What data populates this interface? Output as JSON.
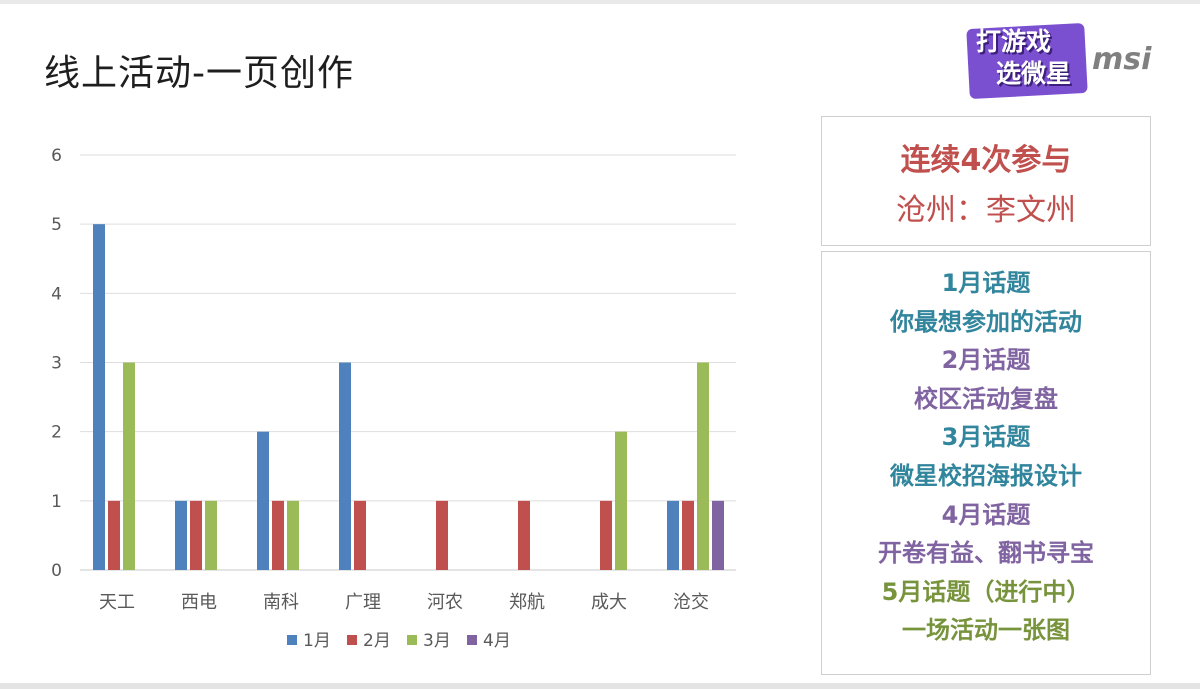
{
  "slide": {
    "title": "线上活动-一页创作"
  },
  "logo": {
    "line1": "打游戏",
    "line2": "选微星",
    "brand": "msi"
  },
  "chart_data": {
    "type": "bar",
    "categories": [
      "天工",
      "西电",
      "南科",
      "广理",
      "河农",
      "郑航",
      "成大",
      "沧交"
    ],
    "series": [
      {
        "name": "1月",
        "color": "#4f81bd",
        "values": [
          5,
          1,
          2,
          3,
          0,
          0,
          0,
          1
        ]
      },
      {
        "name": "2月",
        "color": "#c0504d",
        "values": [
          1,
          1,
          1,
          1,
          1,
          1,
          1,
          1
        ]
      },
      {
        "name": "3月",
        "color": "#9bbb59",
        "values": [
          3,
          1,
          1,
          0,
          0,
          0,
          2,
          3
        ]
      },
      {
        "name": "4月",
        "color": "#8064a2",
        "values": [
          0,
          0,
          0,
          0,
          0,
          0,
          0,
          1
        ]
      }
    ],
    "ylim": [
      0,
      6
    ],
    "yticks": [
      0,
      1,
      2,
      3,
      4,
      5,
      6
    ],
    "grid": true,
    "legend": "bottom"
  },
  "highlight": {
    "title": "连续4次参与",
    "name": "沧州：李文州"
  },
  "topics": [
    {
      "text": "1月话题",
      "color": "#31859c"
    },
    {
      "text": "你最想参加的活动",
      "color": "#31859c"
    },
    {
      "text": "2月话题",
      "color": "#8064a2"
    },
    {
      "text": "校区活动复盘",
      "color": "#8064a2"
    },
    {
      "text": "3月话题",
      "color": "#31859c"
    },
    {
      "text": "微星校招海报设计",
      "color": "#31859c"
    },
    {
      "text": "4月话题",
      "color": "#8064a2"
    },
    {
      "text": "开卷有益、翻书寻宝",
      "color": "#8064a2"
    },
    {
      "text": "5月话题（进行中）",
      "color": "#77933c"
    },
    {
      "text": "一场活动一张图",
      "color": "#77933c"
    }
  ]
}
